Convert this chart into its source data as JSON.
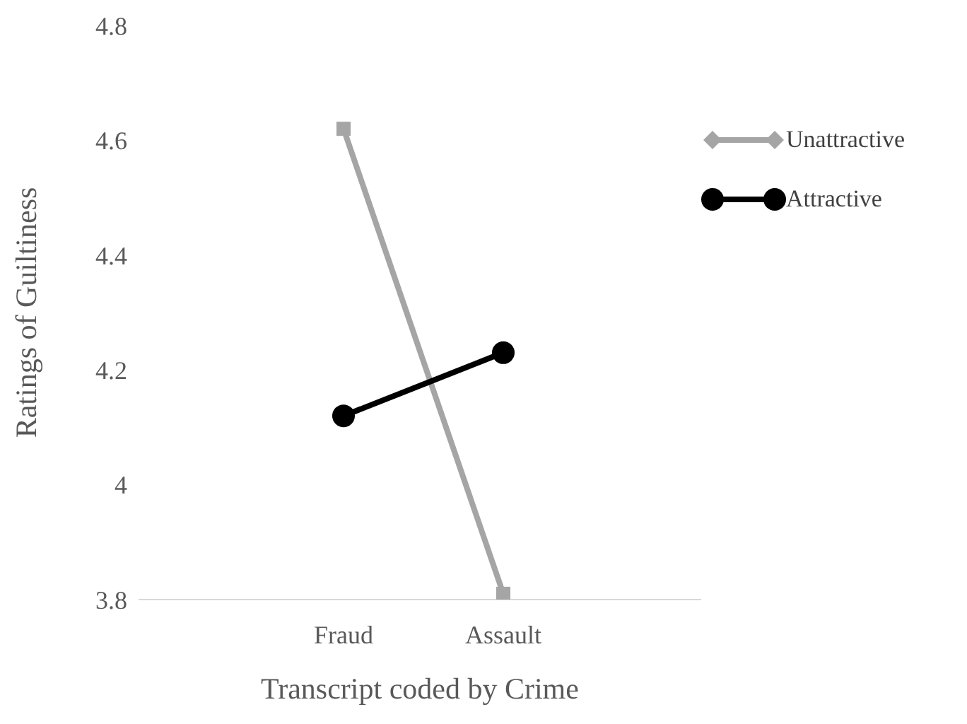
{
  "chart_data": {
    "type": "line",
    "xlabel": "Transcript coded by Crime",
    "ylabel": "Ratings of Guiltiness",
    "categories": [
      "Fraud",
      "Assault"
    ],
    "series": [
      {
        "name": "Unattractive",
        "color": "#a5a5a5",
        "values": [
          4.62,
          3.81
        ],
        "marker": "square"
      },
      {
        "name": "Attractive",
        "color": "#000000",
        "values": [
          4.12,
          4.23
        ],
        "marker": "circle"
      }
    ],
    "ylim": [
      3.8,
      4.8
    ],
    "yticks": [
      3.8,
      {
        "value": 4,
        "label": "4"
      },
      4.2,
      4.4,
      4.6,
      4.8
    ],
    "grid": false,
    "legend": "top right",
    "line_style": "solid"
  }
}
